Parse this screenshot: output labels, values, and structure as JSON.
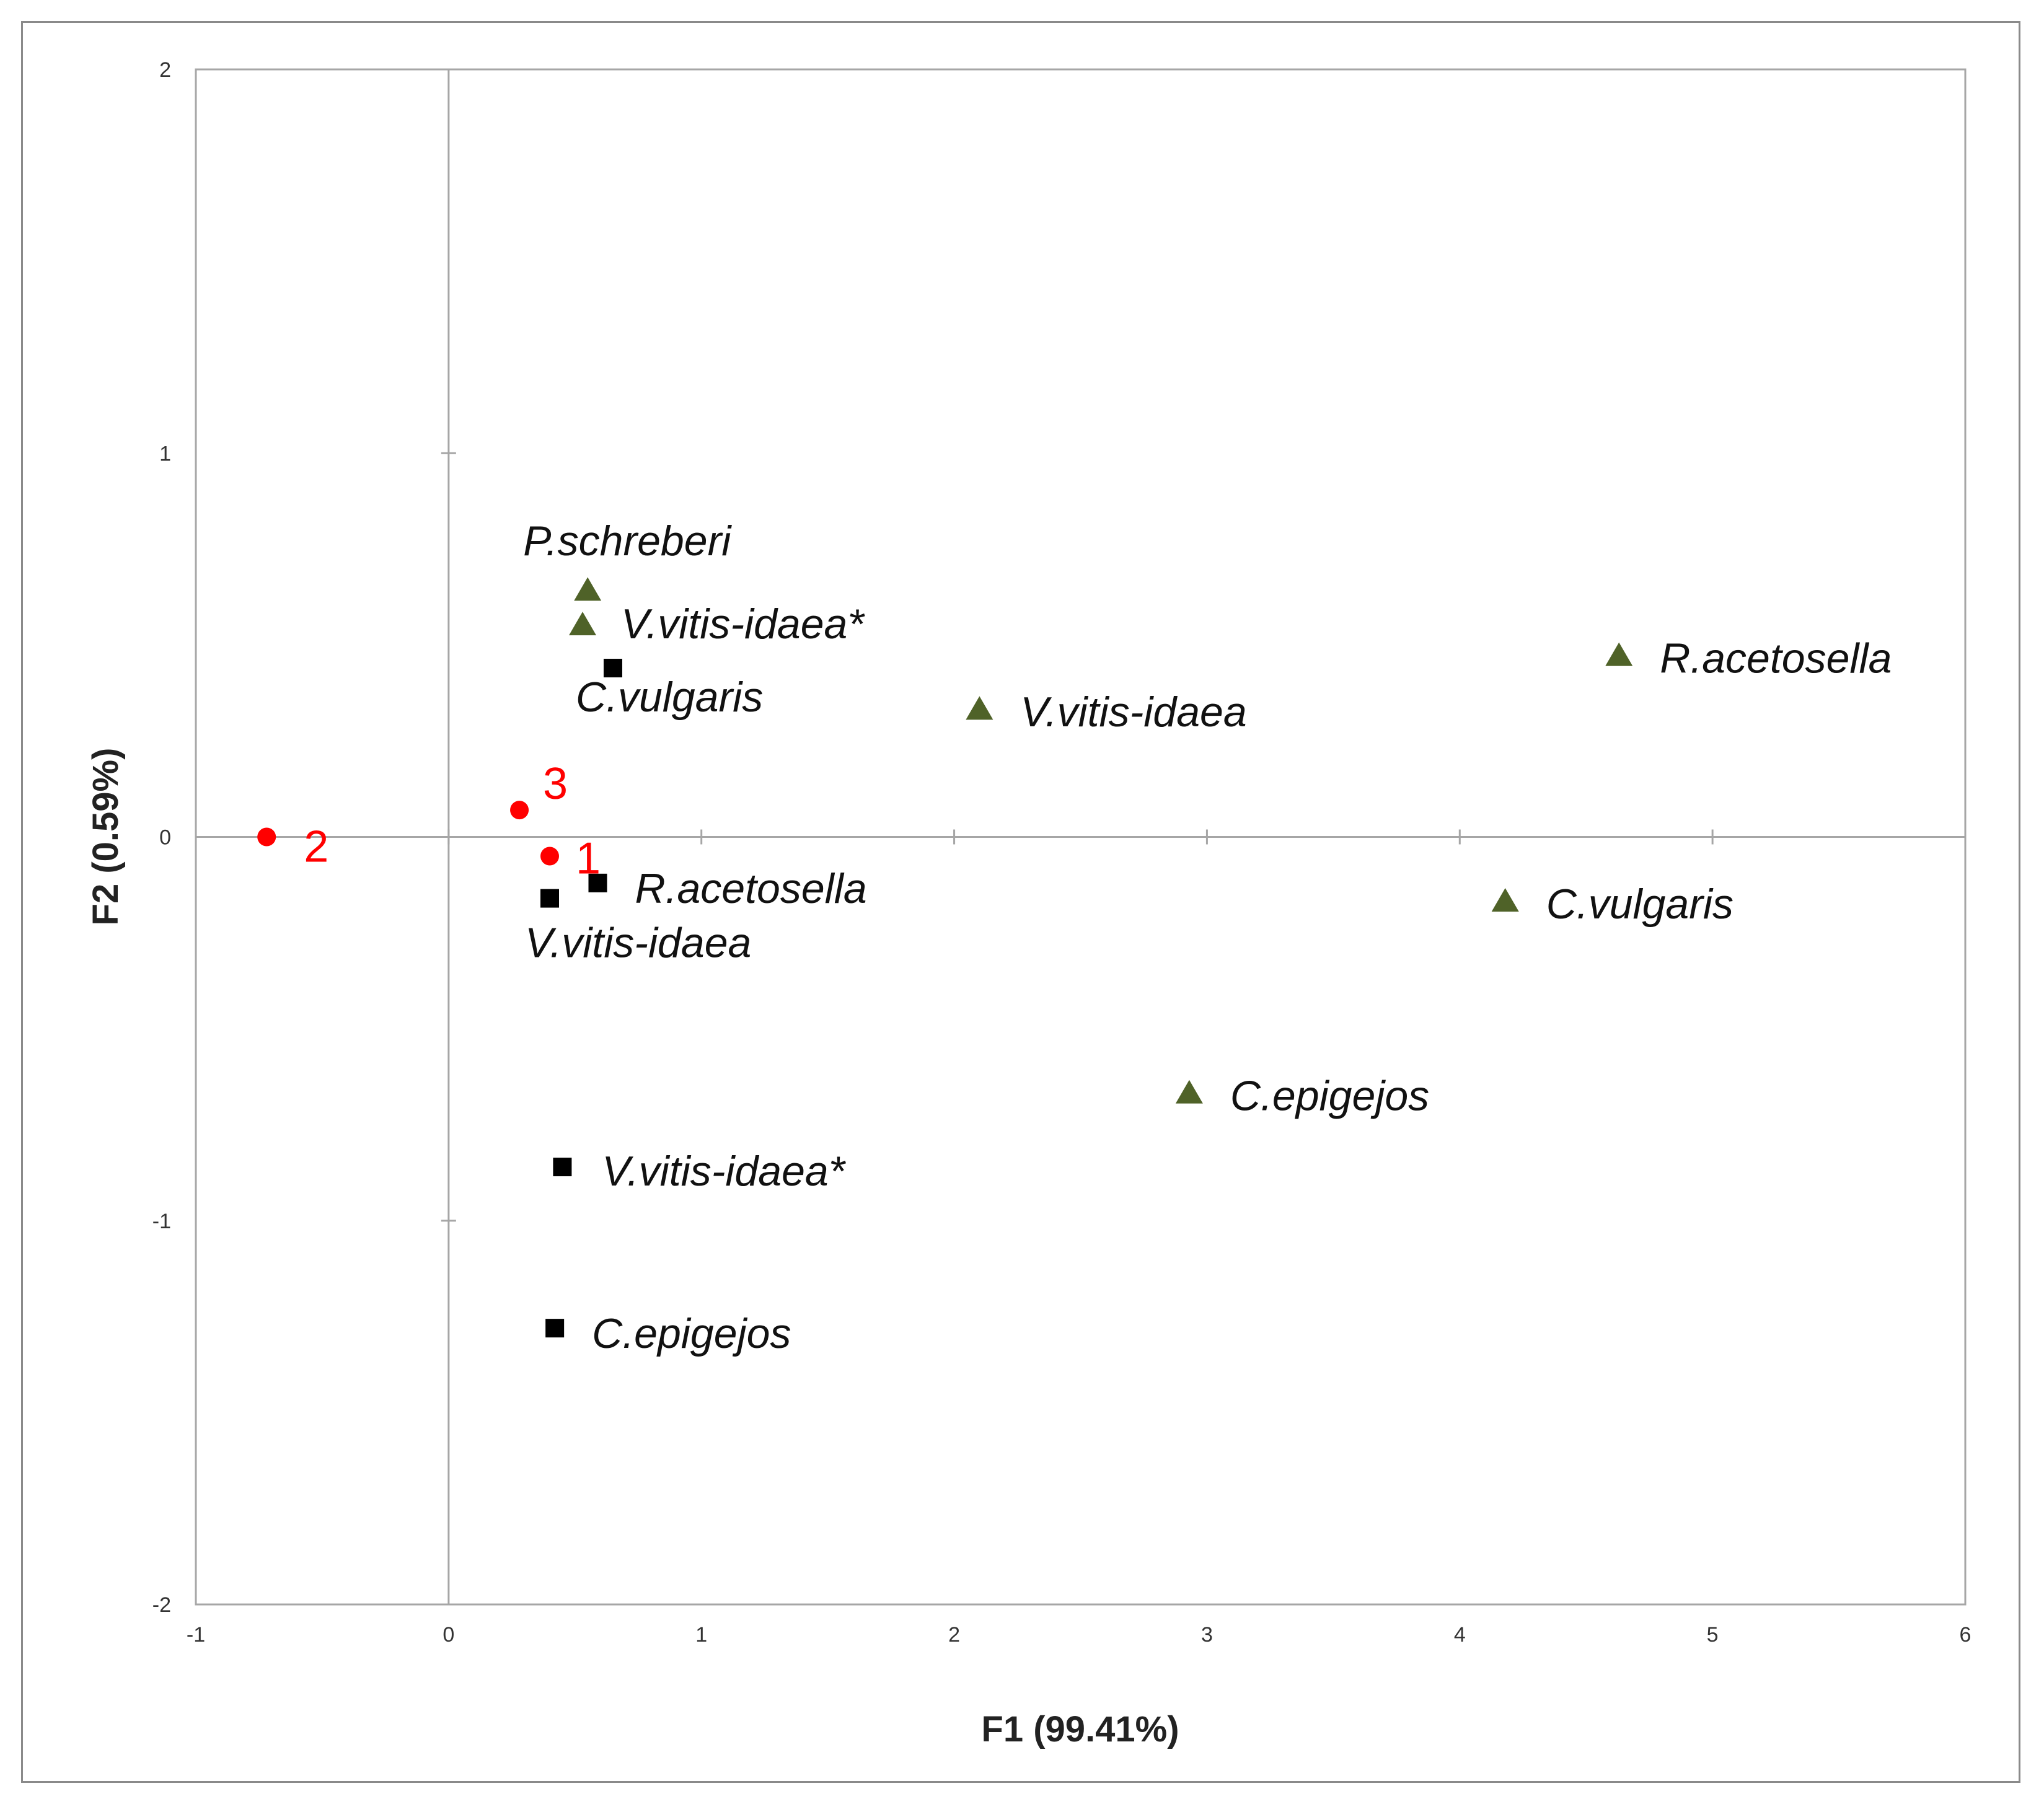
{
  "chart_data": {
    "type": "scatter",
    "title": "",
    "xlabel": "F1 (99.41%)",
    "ylabel": "F2 (0.59%)",
    "xlim": [
      -1,
      6
    ],
    "ylim": [
      -2,
      2
    ],
    "x_ticks": [
      "-1",
      "0",
      "1",
      "2",
      "3",
      "4",
      "5",
      "6"
    ],
    "y_ticks": [
      "-2",
      "-1",
      "0",
      "1",
      "2"
    ],
    "grid": false,
    "zero_lines": true,
    "series": [
      {
        "marker": "circle",
        "color": "#ff0000",
        "points": [
          {
            "label": "1",
            "x": 0.4,
            "y": -0.05
          },
          {
            "label": "2",
            "x": -0.72,
            "y": 0.0
          },
          {
            "label": "3",
            "x": 0.28,
            "y": 0.07
          }
        ]
      },
      {
        "marker": "square",
        "color": "#000000",
        "points": [
          {
            "label": "C.vulgaris",
            "x": 0.65,
            "y": 0.44
          },
          {
            "label": "R.acetosella",
            "x": 0.59,
            "y": -0.12
          },
          {
            "label": "V.vitis-idaea",
            "x": 0.4,
            "y": -0.16
          },
          {
            "label": "V.vitis-idaea*",
            "x": 0.45,
            "y": -0.86
          },
          {
            "label": "C.epigejos",
            "x": 0.42,
            "y": -1.28
          }
        ]
      },
      {
        "marker": "triangle",
        "color": "#4f6228",
        "points": [
          {
            "label": "P.schreberi",
            "x": 0.55,
            "y": 0.64
          },
          {
            "label": "V.vitis-idaea*",
            "x": 0.53,
            "y": 0.55
          },
          {
            "label": "V.vitis-idaea",
            "x": 2.1,
            "y": 0.33
          },
          {
            "label": "R.acetosella",
            "x": 4.63,
            "y": 0.47
          },
          {
            "label": "C.vulgaris",
            "x": 4.18,
            "y": -0.17
          },
          {
            "label": "C.epigejos",
            "x": 2.93,
            "y": -0.67
          }
        ]
      }
    ]
  }
}
